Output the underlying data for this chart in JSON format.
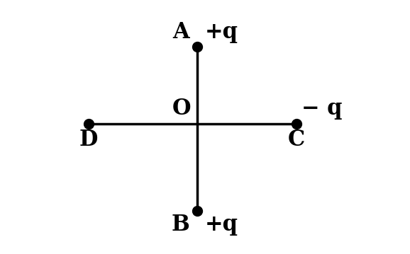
{
  "background_color": "#ffffff",
  "point_A": [
    0,
    2.5
  ],
  "point_B": [
    0,
    -2.8
  ],
  "point_C": [
    3.2,
    0
  ],
  "point_D": [
    -3.5,
    0
  ],
  "point_O": [
    0,
    0
  ],
  "label_A": "A",
  "label_B": "B",
  "label_C": "C",
  "label_D": "D",
  "label_O": "O",
  "charge_A": "+q",
  "charge_B": "+q",
  "charge_C": "− q",
  "dot_size": 100,
  "line_color": "#000000",
  "dot_color": "#000000",
  "text_color": "#000000",
  "font_size_labels": 22,
  "font_size_charges": 22,
  "line_width": 2.5,
  "xlim": [
    -5.0,
    5.5
  ],
  "ylim": [
    -4.2,
    4.0
  ]
}
